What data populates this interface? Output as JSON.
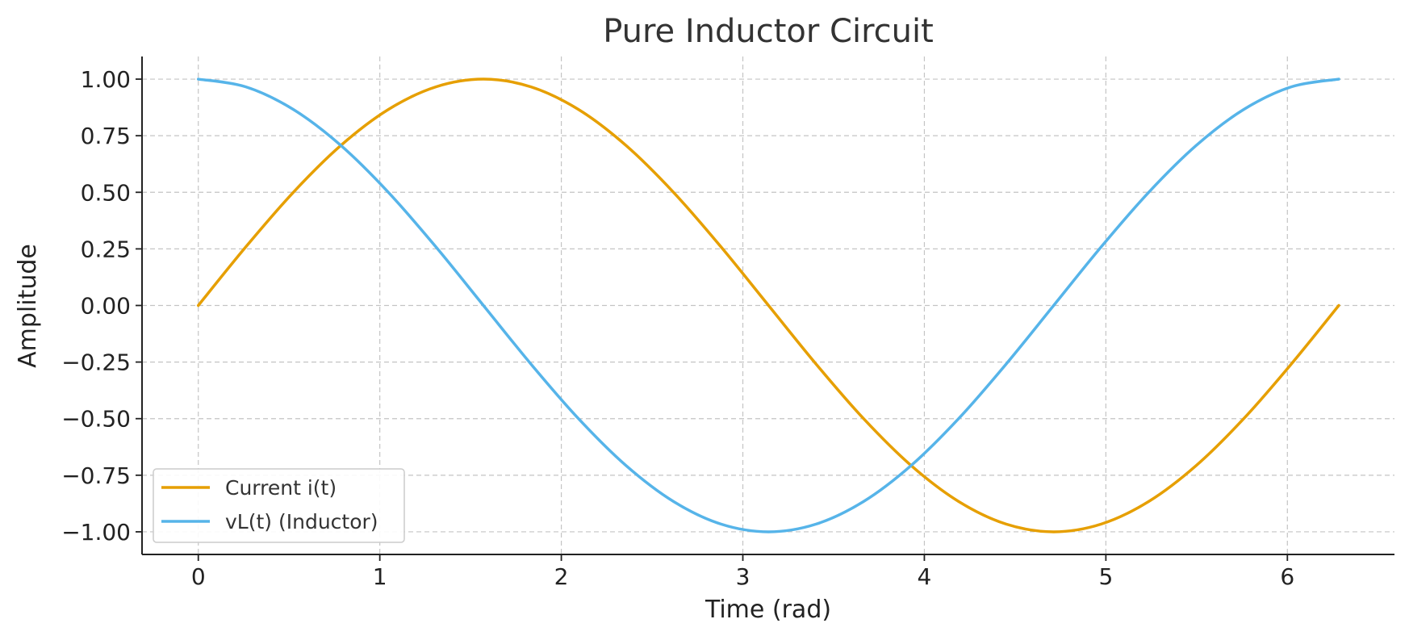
{
  "chart_data": {
    "type": "line",
    "title": "Pure Inductor Circuit",
    "xlabel": "Time (rad)",
    "ylabel": "Amplitude",
    "xlim": [
      -0.31,
      6.59
    ],
    "ylim": [
      -1.1,
      1.1
    ],
    "xticks": [
      0,
      1,
      2,
      3,
      4,
      5,
      6
    ],
    "xtick_labels": [
      "0",
      "1",
      "2",
      "3",
      "4",
      "5",
      "6"
    ],
    "yticks": [
      1.0,
      0.75,
      0.5,
      0.25,
      0.0,
      -0.25,
      -0.5,
      -0.75,
      -1.0
    ],
    "ytick_labels": [
      "1.00",
      "0.75",
      "0.50",
      "0.25",
      "0.00",
      "−0.25",
      "−0.50",
      "−0.75",
      "−1.00"
    ],
    "grid": true,
    "legend_position": "lower-left",
    "x": [
      0,
      0.2618,
      0.5236,
      0.7854,
      1.0472,
      1.309,
      1.5708,
      1.8326,
      2.0944,
      2.3562,
      2.618,
      2.8798,
      3.1416,
      3.4034,
      3.6652,
      3.927,
      4.1888,
      4.4506,
      4.7124,
      4.9742,
      5.236,
      5.4978,
      5.7596,
      6.0214,
      6.2832
    ],
    "series": [
      {
        "name": "Current i(t)",
        "color": "#E69F00",
        "values": [
          0,
          0.2588,
          0.5,
          0.7071,
          0.866,
          0.9659,
          1.0,
          0.9659,
          0.866,
          0.7071,
          0.5,
          0.2588,
          0,
          -0.2588,
          -0.5,
          -0.7071,
          -0.866,
          -0.9659,
          -1.0,
          -0.9659,
          -0.866,
          -0.7071,
          -0.5,
          -0.2588,
          0
        ]
      },
      {
        "name": "vL(t) (Inductor)",
        "color": "#56B4E9",
        "values": [
          1.0,
          0.9659,
          0.866,
          0.7071,
          0.5,
          0.2588,
          0,
          -0.2588,
          -0.5,
          -0.7071,
          -0.866,
          -0.9659,
          -1.0,
          -0.9659,
          -0.866,
          -0.7071,
          -0.5,
          -0.2588,
          0,
          0.2588,
          0.5,
          0.7071,
          0.866,
          0.9659,
          1.0
        ]
      }
    ]
  }
}
